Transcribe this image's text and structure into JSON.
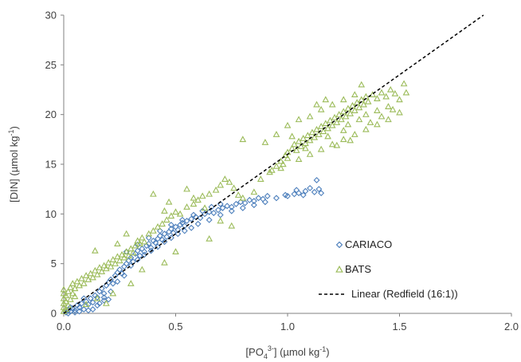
{
  "chart_data": {
    "type": "scatter",
    "xlabel": {
      "prefix": "[PO",
      "sub": "4",
      "sup": "3-",
      "suffix": "] (µmol kg",
      "unit_sup": "-1",
      "close": ")"
    },
    "ylabel": {
      "prefix": "[DIN] (µmol kg",
      "unit_sup": "-1",
      "close": ")"
    },
    "xlim": [
      0,
      2.0
    ],
    "ylim": [
      0,
      30
    ],
    "xticks": [
      "0.0",
      "0.5",
      "1.0",
      "1.5",
      "2.0"
    ],
    "yticks": [
      "0",
      "5",
      "10",
      "15",
      "20",
      "25",
      "30"
    ],
    "grid": false,
    "legend_position": "bottom-right",
    "colors": {
      "cariaco": "#4f81bd",
      "bats": "#9bbb59",
      "redfield": "#000000",
      "axis": "#808080"
    },
    "series": [
      {
        "name": "CARIACO",
        "marker": "diamond",
        "points": [
          [
            0.01,
            0.1
          ],
          [
            0.02,
            0.3
          ],
          [
            0.03,
            0.2
          ],
          [
            0.04,
            0.5
          ],
          [
            0.05,
            0.3
          ],
          [
            0.06,
            0.8
          ],
          [
            0.07,
            0.6
          ],
          [
            0.08,
            1.0
          ],
          [
            0.09,
            0.4
          ],
          [
            0.1,
            1.2
          ],
          [
            0.11,
            0.9
          ],
          [
            0.12,
            1.5
          ],
          [
            0.13,
            1.1
          ],
          [
            0.14,
            1.8
          ],
          [
            0.15,
            1.6
          ],
          [
            0.16,
            2.2
          ],
          [
            0.17,
            2.5
          ],
          [
            0.18,
            2.0
          ],
          [
            0.19,
            2.8
          ],
          [
            0.2,
            3.1
          ],
          [
            0.21,
            3.4
          ],
          [
            0.22,
            3.0
          ],
          [
            0.23,
            3.8
          ],
          [
            0.24,
            4.1
          ],
          [
            0.25,
            4.4
          ],
          [
            0.26,
            4.0
          ],
          [
            0.27,
            4.7
          ],
          [
            0.28,
            5.0
          ],
          [
            0.29,
            5.3
          ],
          [
            0.3,
            5.6
          ],
          [
            0.31,
            5.2
          ],
          [
            0.32,
            6.0
          ],
          [
            0.33,
            6.3
          ],
          [
            0.34,
            5.8
          ],
          [
            0.35,
            6.5
          ],
          [
            0.36,
            6.2
          ],
          [
            0.37,
            6.8
          ],
          [
            0.38,
            7.0
          ],
          [
            0.39,
            6.6
          ],
          [
            0.4,
            7.3
          ],
          [
            0.41,
            7.1
          ],
          [
            0.42,
            7.5
          ],
          [
            0.43,
            7.8
          ],
          [
            0.44,
            7.4
          ],
          [
            0.45,
            8.0
          ],
          [
            0.46,
            7.7
          ],
          [
            0.47,
            8.2
          ],
          [
            0.48,
            8.5
          ],
          [
            0.49,
            8.1
          ],
          [
            0.5,
            8.7
          ],
          [
            0.51,
            8.4
          ],
          [
            0.52,
            8.9
          ],
          [
            0.53,
            9.1
          ],
          [
            0.54,
            8.8
          ],
          [
            0.55,
            9.3
          ],
          [
            0.57,
            9.5
          ],
          [
            0.59,
            9.7
          ],
          [
            0.61,
            9.6
          ],
          [
            0.63,
            10.0
          ],
          [
            0.65,
            10.2
          ],
          [
            0.67,
            10.1
          ],
          [
            0.69,
            10.4
          ],
          [
            0.71,
            10.6
          ],
          [
            0.73,
            10.8
          ],
          [
            0.75,
            10.7
          ],
          [
            0.77,
            11.0
          ],
          [
            0.79,
            11.2
          ],
          [
            0.81,
            11.1
          ],
          [
            0.83,
            11.4
          ],
          [
            0.85,
            11.3
          ],
          [
            0.87,
            11.6
          ],
          [
            0.89,
            11.5
          ],
          [
            0.91,
            11.8
          ],
          [
            0.95,
            11.6
          ],
          [
            0.99,
            11.9
          ],
          [
            1.03,
            12.0
          ],
          [
            1.04,
            12.4
          ],
          [
            1.07,
            11.9
          ],
          [
            1.1,
            12.6
          ],
          [
            1.12,
            12.2
          ],
          [
            1.13,
            13.4
          ],
          [
            1.14,
            12.5
          ],
          [
            1.15,
            12.1
          ],
          [
            1.08,
            12.3
          ],
          [
            0.02,
            0.0
          ],
          [
            0.03,
            0.6
          ],
          [
            0.05,
            0.1
          ],
          [
            0.07,
            0.2
          ],
          [
            0.09,
            1.5
          ],
          [
            0.11,
            0.3
          ],
          [
            0.13,
            0.4
          ],
          [
            0.15,
            0.8
          ],
          [
            0.18,
            1.3
          ],
          [
            0.21,
            2.2
          ],
          [
            0.24,
            3.2
          ],
          [
            0.27,
            3.8
          ],
          [
            0.3,
            4.8
          ],
          [
            0.33,
            5.4
          ],
          [
            0.36,
            5.9
          ],
          [
            0.39,
            6.3
          ],
          [
            0.42,
            6.7
          ],
          [
            0.45,
            7.2
          ],
          [
            0.48,
            7.6
          ],
          [
            0.51,
            8.0
          ],
          [
            0.54,
            8.3
          ],
          [
            0.57,
            8.6
          ],
          [
            0.6,
            9.0
          ],
          [
            0.65,
            9.4
          ],
          [
            0.7,
            9.9
          ],
          [
            0.75,
            10.3
          ],
          [
            0.8,
            10.6
          ],
          [
            0.85,
            10.9
          ],
          [
            0.9,
            11.2
          ],
          [
            1.0,
            11.8
          ],
          [
            1.05,
            12.1
          ],
          [
            0.28,
            6.2
          ],
          [
            0.33,
            6.9
          ],
          [
            0.38,
            7.6
          ],
          [
            0.43,
            8.3
          ],
          [
            0.48,
            8.9
          ],
          [
            0.53,
            9.4
          ],
          [
            0.58,
            9.9
          ],
          [
            0.62,
            10.3
          ],
          [
            0.66,
            10.7
          ],
          [
            0.7,
            11.0
          ],
          [
            0.18,
            1.6
          ],
          [
            0.2,
            1.4
          ],
          [
            0.16,
            1.0
          ]
        ]
      },
      {
        "name": "BATS",
        "marker": "triangle",
        "points": [
          [
            0.0,
            0.2
          ],
          [
            0.0,
            0.6
          ],
          [
            0.0,
            1.0
          ],
          [
            0.0,
            1.5
          ],
          [
            0.0,
            2.0
          ],
          [
            0.0,
            2.4
          ],
          [
            0.01,
            0.4
          ],
          [
            0.01,
            1.2
          ],
          [
            0.01,
            1.8
          ],
          [
            0.02,
            0.8
          ],
          [
            0.02,
            2.2
          ],
          [
            0.03,
            1.4
          ],
          [
            0.03,
            2.6
          ],
          [
            0.04,
            2.0
          ],
          [
            0.04,
            3.0
          ],
          [
            0.05,
            1.7
          ],
          [
            0.05,
            2.5
          ],
          [
            0.06,
            3.2
          ],
          [
            0.07,
            2.8
          ],
          [
            0.08,
            3.5
          ],
          [
            0.09,
            3.0
          ],
          [
            0.1,
            3.8
          ],
          [
            0.11,
            3.4
          ],
          [
            0.12,
            4.0
          ],
          [
            0.13,
            3.6
          ],
          [
            0.14,
            4.3
          ],
          [
            0.15,
            3.9
          ],
          [
            0.16,
            4.6
          ],
          [
            0.17,
            4.2
          ],
          [
            0.18,
            4.8
          ],
          [
            0.19,
            4.5
          ],
          [
            0.2,
            5.1
          ],
          [
            0.21,
            4.7
          ],
          [
            0.22,
            5.4
          ],
          [
            0.23,
            5.0
          ],
          [
            0.24,
            5.7
          ],
          [
            0.25,
            5.3
          ],
          [
            0.26,
            5.9
          ],
          [
            0.27,
            5.6
          ],
          [
            0.28,
            6.2
          ],
          [
            0.29,
            5.8
          ],
          [
            0.3,
            6.5
          ],
          [
            0.31,
            6.1
          ],
          [
            0.32,
            6.8
          ],
          [
            0.33,
            7.3
          ],
          [
            0.34,
            7.0
          ],
          [
            0.35,
            7.6
          ],
          [
            0.36,
            7.2
          ],
          [
            0.38,
            8.0
          ],
          [
            0.4,
            8.3
          ],
          [
            0.42,
            8.7
          ],
          [
            0.44,
            9.0
          ],
          [
            0.46,
            9.4
          ],
          [
            0.48,
            9.8
          ],
          [
            0.5,
            10.2
          ],
          [
            0.52,
            10.0
          ],
          [
            0.55,
            10.7
          ],
          [
            0.58,
            11.0
          ],
          [
            0.6,
            11.4
          ],
          [
            0.62,
            11.8
          ],
          [
            0.65,
            12.0
          ],
          [
            0.68,
            12.4
          ],
          [
            0.7,
            12.9
          ],
          [
            0.72,
            13.5
          ],
          [
            0.74,
            13.2
          ],
          [
            0.76,
            12.6
          ],
          [
            0.78,
            11.9
          ],
          [
            0.8,
            11.6
          ],
          [
            0.85,
            12.2
          ],
          [
            0.58,
            11.6
          ],
          [
            0.45,
            10.3
          ],
          [
            0.47,
            11.2
          ],
          [
            0.4,
            12.0
          ],
          [
            0.55,
            12.5
          ],
          [
            0.63,
            10.6
          ],
          [
            0.28,
            8.0
          ],
          [
            0.22,
            2.0
          ],
          [
            0.19,
            1.0
          ],
          [
            0.14,
            6.3
          ],
          [
            0.24,
            7.0
          ],
          [
            0.8,
            17.5
          ],
          [
            0.75,
            8.8
          ],
          [
            0.7,
            9.3
          ],
          [
            0.65,
            7.5
          ],
          [
            0.5,
            6.2
          ],
          [
            0.45,
            5.1
          ],
          [
            0.35,
            4.4
          ],
          [
            0.3,
            3.0
          ],
          [
            0.15,
            1.5
          ],
          [
            0.1,
            0.9
          ],
          [
            0.88,
            13.5
          ],
          [
            0.92,
            14.2
          ],
          [
            0.95,
            14.8
          ],
          [
            0.97,
            15.3
          ],
          [
            0.99,
            15.9
          ],
          [
            1.0,
            16.2
          ],
          [
            1.02,
            16.6
          ],
          [
            1.03,
            17.0
          ],
          [
            1.04,
            16.4
          ],
          [
            1.05,
            17.3
          ],
          [
            1.06,
            16.8
          ],
          [
            1.07,
            17.6
          ],
          [
            1.08,
            17.1
          ],
          [
            1.09,
            17.9
          ],
          [
            1.1,
            17.4
          ],
          [
            1.11,
            18.2
          ],
          [
            1.12,
            17.7
          ],
          [
            1.13,
            18.5
          ],
          [
            1.14,
            18.0
          ],
          [
            1.15,
            18.8
          ],
          [
            1.16,
            18.3
          ],
          [
            1.17,
            19.1
          ],
          [
            1.18,
            18.6
          ],
          [
            1.19,
            19.4
          ],
          [
            1.2,
            18.9
          ],
          [
            1.21,
            19.7
          ],
          [
            1.22,
            19.2
          ],
          [
            1.23,
            20.0
          ],
          [
            1.24,
            19.5
          ],
          [
            1.25,
            20.3
          ],
          [
            1.26,
            19.8
          ],
          [
            1.27,
            20.6
          ],
          [
            1.28,
            20.1
          ],
          [
            1.29,
            20.9
          ],
          [
            1.3,
            20.4
          ],
          [
            1.31,
            21.2
          ],
          [
            1.32,
            20.7
          ],
          [
            1.33,
            21.5
          ],
          [
            1.34,
            21.0
          ],
          [
            1.35,
            21.8
          ],
          [
            1.36,
            21.3
          ],
          [
            1.38,
            22.0
          ],
          [
            1.4,
            21.6
          ],
          [
            1.42,
            22.2
          ],
          [
            1.44,
            21.8
          ],
          [
            1.46,
            22.5
          ],
          [
            1.48,
            22.1
          ],
          [
            1.5,
            21.5
          ],
          [
            1.52,
            23.1
          ],
          [
            1.53,
            22.2
          ],
          [
            1.33,
            23.0
          ],
          [
            1.3,
            22.0
          ],
          [
            1.25,
            21.5
          ],
          [
            1.2,
            21.0
          ],
          [
            1.15,
            20.5
          ],
          [
            1.1,
            19.8
          ],
          [
            1.05,
            19.5
          ],
          [
            1.0,
            18.9
          ],
          [
            0.95,
            18.0
          ],
          [
            0.9,
            17.2
          ],
          [
            1.15,
            16.5
          ],
          [
            1.2,
            17.0
          ],
          [
            1.25,
            17.5
          ],
          [
            1.3,
            18.0
          ],
          [
            1.35,
            18.5
          ],
          [
            1.4,
            19.0
          ],
          [
            1.45,
            19.5
          ],
          [
            1.5,
            20.2
          ],
          [
            1.22,
            16.9
          ],
          [
            1.28,
            17.4
          ],
          [
            1.1,
            16.0
          ],
          [
            1.05,
            15.5
          ],
          [
            0.98,
            15.0
          ],
          [
            0.93,
            14.4
          ],
          [
            1.35,
            20.0
          ],
          [
            1.4,
            20.4
          ],
          [
            1.45,
            20.8
          ],
          [
            1.25,
            18.4
          ],
          [
            1.18,
            17.8
          ],
          [
            1.08,
            16.6
          ],
          [
            1.13,
            21.0
          ],
          [
            1.17,
            21.5
          ],
          [
            1.0,
            15.6
          ],
          [
            0.97,
            14.6
          ],
          [
            1.37,
            19.2
          ],
          [
            1.42,
            19.8
          ],
          [
            1.47,
            20.5
          ],
          [
            1.27,
            19.0
          ],
          [
            1.32,
            19.5
          ],
          [
            1.02,
            17.8
          ]
        ]
      }
    ],
    "trendline": {
      "name": "Linear (Redfield (16:1))",
      "x": [
        0.0,
        1.875
      ],
      "y": [
        0.0,
        30.0
      ]
    }
  },
  "legend": {
    "cariaco": "CARIACO",
    "bats": "BATS",
    "redfield": "Linear (Redfield (16:1))"
  }
}
